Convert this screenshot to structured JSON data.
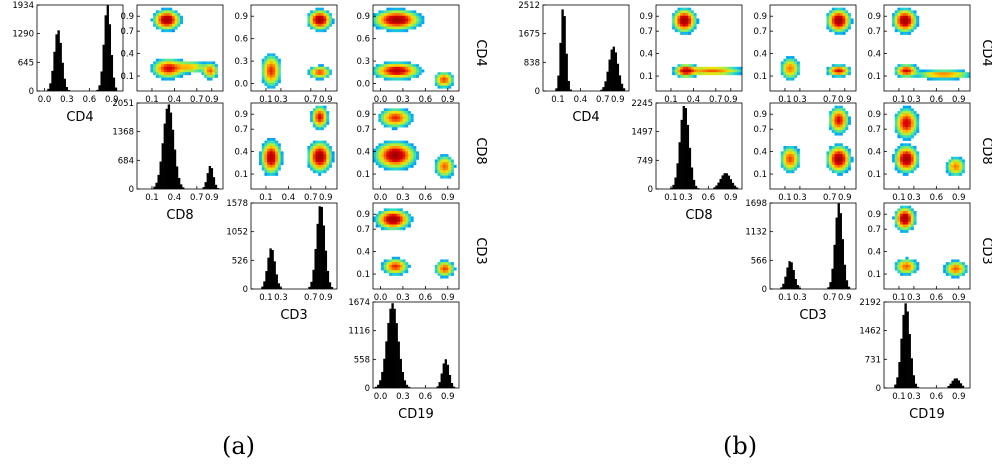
{
  "chart_data": [
    {
      "type": "histogram",
      "panel": "a",
      "variable": "CD4",
      "xticks": [
        "0.0",
        "0.3",
        "0.6",
        "0.9"
      ],
      "yticks": [
        0,
        645,
        1290,
        1934
      ],
      "ylim": [
        0,
        1934
      ],
      "xlim": [
        -0.1,
        1.05
      ],
      "peaks": [
        {
          "center": 0.18,
          "width": 0.05,
          "height": 1380
        },
        {
          "center": 0.84,
          "width": 0.045,
          "height": 1934
        }
      ]
    },
    {
      "type": "histogram",
      "panel": "a",
      "variable": "CD8",
      "xticks": [
        "0.1",
        "0.4",
        "0.7",
        "0.9"
      ],
      "yticks": [
        0,
        684,
        1368,
        2051
      ],
      "ylim": [
        0,
        2051
      ],
      "xlim": [
        -0.1,
        1.05
      ],
      "peaks": [
        {
          "center": 0.32,
          "width": 0.07,
          "height": 2020
        },
        {
          "center": 0.88,
          "width": 0.04,
          "height": 560
        }
      ]
    },
    {
      "type": "histogram",
      "panel": "a",
      "variable": "CD3",
      "xticks": [
        "0.1",
        "0.3",
        "0.7",
        "0.9"
      ],
      "yticks": [
        0,
        526,
        1052,
        1578
      ],
      "ylim": [
        0,
        1578
      ],
      "xlim": [
        -0.1,
        1.05
      ],
      "peaks": [
        {
          "center": 0.17,
          "width": 0.05,
          "height": 760
        },
        {
          "center": 0.83,
          "width": 0.055,
          "height": 1560
        }
      ]
    },
    {
      "type": "histogram",
      "panel": "a",
      "variable": "CD19",
      "xticks": [
        "0.0",
        "0.3",
        "0.6",
        "0.9"
      ],
      "yticks": [
        0,
        558,
        1116,
        1674
      ],
      "ylim": [
        0,
        1674
      ],
      "xlim": [
        -0.1,
        1.05
      ],
      "peaks": [
        {
          "center": 0.16,
          "width": 0.075,
          "height": 1650
        },
        {
          "center": 0.87,
          "width": 0.045,
          "height": 560
        }
      ]
    },
    {
      "type": "histogram",
      "panel": "b",
      "variable": "CD4",
      "xticks": [
        "0.1",
        "0.4",
        "0.7",
        "0.9"
      ],
      "yticks": [
        0,
        838,
        1675,
        2512
      ],
      "ylim": [
        0,
        2512
      ],
      "xlim": [
        -0.1,
        1.05
      ],
      "peaks": [
        {
          "center": 0.17,
          "width": 0.035,
          "height": 2480
        },
        {
          "center": 0.84,
          "width": 0.06,
          "height": 1300
        }
      ]
    },
    {
      "type": "histogram",
      "panel": "b",
      "variable": "CD8",
      "xticks": [
        "0.1",
        "0.3",
        "0.6",
        "0.9"
      ],
      "yticks": [
        0,
        749,
        1497,
        2245
      ],
      "ylim": [
        0,
        2245
      ],
      "xlim": [
        -0.1,
        1.05
      ],
      "peaks": [
        {
          "center": 0.28,
          "width": 0.06,
          "height": 2200
        },
        {
          "center": 0.83,
          "width": 0.07,
          "height": 420
        }
      ]
    },
    {
      "type": "histogram",
      "panel": "b",
      "variable": "CD3",
      "xticks": [
        "0.1",
        "0.3",
        "0.7",
        "0.9"
      ],
      "yticks": [
        0,
        566,
        1132,
        1698
      ],
      "ylim": [
        0,
        1698
      ],
      "xlim": [
        -0.1,
        1.05
      ],
      "peaks": [
        {
          "center": 0.17,
          "width": 0.05,
          "height": 560
        },
        {
          "center": 0.82,
          "width": 0.05,
          "height": 1690
        }
      ]
    },
    {
      "type": "histogram",
      "panel": "b",
      "variable": "CD19",
      "xticks": [
        "0.1",
        "0.3",
        "0.6",
        "0.9"
      ],
      "yticks": [
        0,
        731,
        1462,
        2192
      ],
      "ylim": [
        0,
        2192
      ],
      "xlim": [
        -0.1,
        1.05
      ],
      "peaks": [
        {
          "center": 0.19,
          "width": 0.055,
          "height": 2160
        },
        {
          "center": 0.86,
          "width": 0.055,
          "height": 250
        }
      ]
    },
    {
      "type": "heatmap",
      "panel": "a",
      "x": "CD8",
      "y": "CD4",
      "xticks": [
        "0.1",
        "0.4",
        "0.7",
        "0.9"
      ],
      "yticks": [
        "0.1",
        "0.4",
        "0.7",
        "0.9"
      ],
      "clusters": [
        {
          "x": 0.3,
          "y": 0.85,
          "sx": 0.08,
          "sy": 0.06,
          "w": 1.0
        },
        {
          "x": 0.32,
          "y": 0.2,
          "sx": 0.1,
          "sy": 0.06,
          "w": 0.7
        },
        {
          "x": 0.88,
          "y": 0.17,
          "sx": 0.05,
          "sy": 0.05,
          "w": 0.5
        },
        {
          "x": 0.6,
          "y": 0.22,
          "sx": 0.12,
          "sy": 0.04,
          "w": 0.35
        }
      ]
    },
    {
      "type": "heatmap",
      "panel": "a",
      "x": "CD3",
      "y": "CD4",
      "xticks": [
        "0.1",
        "0.3",
        "0.7",
        "0.9"
      ],
      "yticks": [
        "0.0",
        "0.3",
        "0.6",
        "0.9"
      ],
      "clusters": [
        {
          "x": 0.82,
          "y": 0.85,
          "sx": 0.07,
          "sy": 0.06,
          "w": 1.0
        },
        {
          "x": 0.17,
          "y": 0.17,
          "sx": 0.06,
          "sy": 0.1,
          "w": 0.6
        },
        {
          "x": 0.82,
          "y": 0.15,
          "sx": 0.07,
          "sy": 0.04,
          "w": 0.55
        }
      ]
    },
    {
      "type": "heatmap",
      "panel": "a",
      "x": "CD19",
      "y": "CD4",
      "xticks": [
        "0.0",
        "0.3",
        "0.6",
        "0.9"
      ],
      "yticks": [
        "0.0",
        "0.3",
        "0.6",
        "0.9"
      ],
      "clusters": [
        {
          "x": 0.22,
          "y": 0.85,
          "sx": 0.14,
          "sy": 0.06,
          "w": 1.0
        },
        {
          "x": 0.22,
          "y": 0.17,
          "sx": 0.14,
          "sy": 0.05,
          "w": 0.85
        },
        {
          "x": 0.85,
          "y": 0.05,
          "sx": 0.06,
          "sy": 0.05,
          "w": 0.55
        }
      ]
    },
    {
      "type": "heatmap",
      "panel": "a",
      "x": "CD3",
      "y": "CD8",
      "xticks": [
        "0.1",
        "0.4",
        "0.7",
        "0.9"
      ],
      "yticks": [
        "0.1",
        "0.4",
        "0.7",
        "0.9"
      ],
      "clusters": [
        {
          "x": 0.17,
          "y": 0.32,
          "sx": 0.06,
          "sy": 0.1,
          "w": 0.9
        },
        {
          "x": 0.82,
          "y": 0.33,
          "sx": 0.07,
          "sy": 0.09,
          "w": 1.0
        },
        {
          "x": 0.82,
          "y": 0.86,
          "sx": 0.05,
          "sy": 0.07,
          "w": 0.7
        }
      ]
    },
    {
      "type": "heatmap",
      "panel": "a",
      "x": "CD19",
      "y": "CD8",
      "xticks": [
        "0.0",
        "0.3",
        "0.6",
        "0.9"
      ],
      "yticks": [
        "0.1",
        "0.4",
        "0.7",
        "0.9"
      ],
      "clusters": [
        {
          "x": 0.2,
          "y": 0.35,
          "sx": 0.12,
          "sy": 0.08,
          "w": 1.0
        },
        {
          "x": 0.2,
          "y": 0.85,
          "sx": 0.1,
          "sy": 0.06,
          "w": 0.6
        },
        {
          "x": 0.86,
          "y": 0.2,
          "sx": 0.06,
          "sy": 0.07,
          "w": 0.5
        }
      ]
    },
    {
      "type": "heatmap",
      "panel": "a",
      "x": "CD19",
      "y": "CD3",
      "xticks": [
        "0.0",
        "0.3",
        "0.6",
        "0.9"
      ],
      "yticks": [
        "0.1",
        "0.4",
        "0.7",
        "0.9"
      ],
      "clusters": [
        {
          "x": 0.17,
          "y": 0.83,
          "sx": 0.1,
          "sy": 0.06,
          "w": 1.0
        },
        {
          "x": 0.2,
          "y": 0.2,
          "sx": 0.08,
          "sy": 0.05,
          "w": 0.6
        },
        {
          "x": 0.86,
          "y": 0.17,
          "sx": 0.06,
          "sy": 0.05,
          "w": 0.55
        }
      ]
    },
    {
      "type": "heatmap",
      "panel": "b",
      "x": "CD8",
      "y": "CD4",
      "xticks": [
        "0.1",
        "0.4",
        "0.7",
        "0.9"
      ],
      "yticks": [
        "0.1",
        "0.4",
        "0.7",
        "0.9"
      ],
      "clusters": [
        {
          "x": 0.28,
          "y": 0.84,
          "sx": 0.07,
          "sy": 0.07,
          "w": 1.0
        },
        {
          "x": 0.3,
          "y": 0.17,
          "sx": 0.07,
          "sy": 0.04,
          "w": 0.8
        },
        {
          "x": 0.65,
          "y": 0.17,
          "sx": 0.2,
          "sy": 0.03,
          "w": 0.5
        }
      ]
    },
    {
      "type": "heatmap",
      "panel": "b",
      "x": "CD3",
      "y": "CD4",
      "xticks": [
        "0.1",
        "0.3",
        "0.7",
        "0.9"
      ],
      "yticks": [
        "0.1",
        "0.4",
        "0.7",
        "0.9"
      ],
      "clusters": [
        {
          "x": 0.82,
          "y": 0.84,
          "sx": 0.07,
          "sy": 0.07,
          "w": 1.0
        },
        {
          "x": 0.17,
          "y": 0.2,
          "sx": 0.06,
          "sy": 0.07,
          "w": 0.45
        },
        {
          "x": 0.82,
          "y": 0.17,
          "sx": 0.07,
          "sy": 0.035,
          "w": 0.7
        }
      ]
    },
    {
      "type": "heatmap",
      "panel": "b",
      "x": "CD19",
      "y": "CD4",
      "xticks": [
        "0.1",
        "0.3",
        "0.6",
        "0.9"
      ],
      "yticks": [
        "0.1",
        "0.4",
        "0.7",
        "0.9"
      ],
      "clusters": [
        {
          "x": 0.18,
          "y": 0.84,
          "sx": 0.07,
          "sy": 0.07,
          "w": 1.0
        },
        {
          "x": 0.2,
          "y": 0.17,
          "sx": 0.07,
          "sy": 0.04,
          "w": 0.7
        },
        {
          "x": 0.7,
          "y": 0.12,
          "sx": 0.18,
          "sy": 0.03,
          "w": 0.45
        }
      ]
    },
    {
      "type": "heatmap",
      "panel": "b",
      "x": "CD3",
      "y": "CD8",
      "xticks": [
        "0.1",
        "0.3",
        "0.7",
        "0.9"
      ],
      "yticks": [
        "0.1",
        "0.4",
        "0.7",
        "0.9"
      ],
      "clusters": [
        {
          "x": 0.17,
          "y": 0.3,
          "sx": 0.06,
          "sy": 0.08,
          "w": 0.55
        },
        {
          "x": 0.82,
          "y": 0.3,
          "sx": 0.07,
          "sy": 0.08,
          "w": 1.0
        },
        {
          "x": 0.82,
          "y": 0.82,
          "sx": 0.06,
          "sy": 0.08,
          "w": 0.7
        }
      ]
    },
    {
      "type": "heatmap",
      "panel": "b",
      "x": "CD19",
      "y": "CD8",
      "xticks": [
        "0.1",
        "0.3",
        "0.6",
        "0.9"
      ],
      "yticks": [
        "0.1",
        "0.4",
        "0.7",
        "0.9"
      ],
      "clusters": [
        {
          "x": 0.2,
          "y": 0.3,
          "sx": 0.07,
          "sy": 0.08,
          "w": 1.0
        },
        {
          "x": 0.2,
          "y": 0.78,
          "sx": 0.07,
          "sy": 0.09,
          "w": 0.75
        },
        {
          "x": 0.86,
          "y": 0.2,
          "sx": 0.06,
          "sy": 0.06,
          "w": 0.45
        }
      ]
    },
    {
      "type": "heatmap",
      "panel": "b",
      "x": "CD19",
      "y": "CD3",
      "xticks": [
        "0.1",
        "0.3",
        "0.6",
        "0.9"
      ],
      "yticks": [
        "0.1",
        "0.4",
        "0.7",
        "0.9"
      ],
      "clusters": [
        {
          "x": 0.18,
          "y": 0.84,
          "sx": 0.06,
          "sy": 0.07,
          "w": 1.0
        },
        {
          "x": 0.2,
          "y": 0.2,
          "sx": 0.07,
          "sy": 0.05,
          "w": 0.5
        },
        {
          "x": 0.86,
          "y": 0.17,
          "sx": 0.07,
          "sy": 0.05,
          "w": 0.5
        }
      ]
    }
  ],
  "colors": {
    "bar": "#000000",
    "axis": "#000000",
    "colormap": [
      "#0000c8",
      "#00a0ff",
      "#30e0c0",
      "#a0f040",
      "#ffe000",
      "#ff8000",
      "#e00000",
      "#a00000"
    ]
  },
  "captions": {
    "a": "(a)",
    "b": "(b)"
  }
}
